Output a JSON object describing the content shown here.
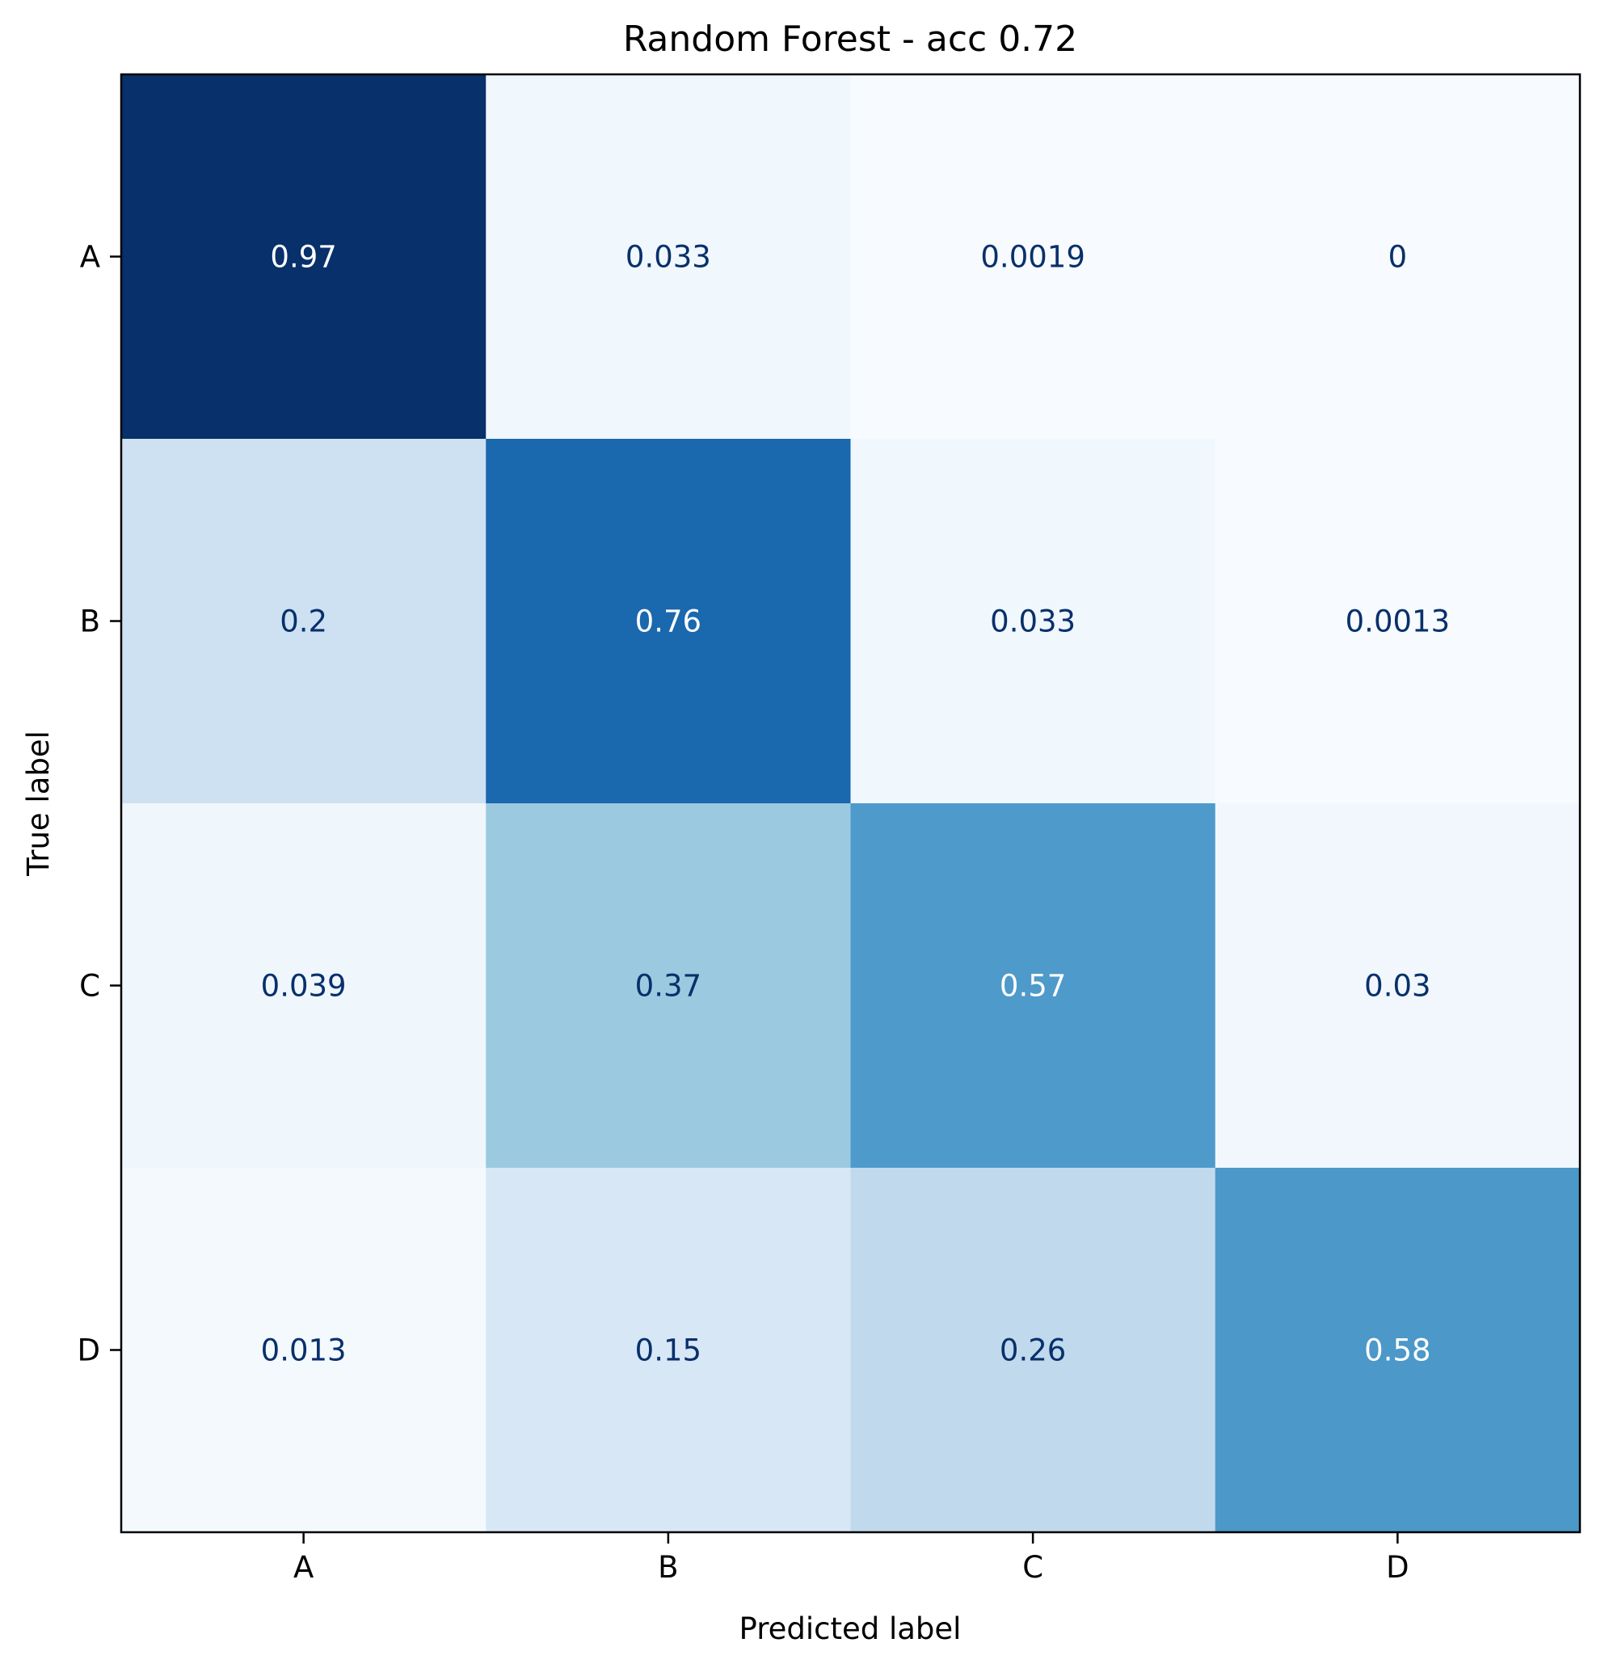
{
  "chart_data": {
    "type": "heatmap",
    "title": "Random Forest - acc 0.72",
    "xlabel": "Predicted label",
    "ylabel": "True label",
    "x_categories": [
      "A",
      "B",
      "C",
      "D"
    ],
    "y_categories": [
      "A",
      "B",
      "C",
      "D"
    ],
    "values": [
      [
        0.97,
        0.033,
        0.0019,
        0
      ],
      [
        0.2,
        0.76,
        0.033,
        0.0013
      ],
      [
        0.039,
        0.37,
        0.57,
        0.03
      ],
      [
        0.013,
        0.15,
        0.26,
        0.58
      ]
    ],
    "value_labels": [
      [
        "0.97",
        "0.033",
        "0.0019",
        "0"
      ],
      [
        "0.2",
        "0.76",
        "0.033",
        "0.0013"
      ],
      [
        "0.039",
        "0.37",
        "0.57",
        "0.03"
      ],
      [
        "0.013",
        "0.15",
        "0.26",
        "0.58"
      ]
    ],
    "colormap": "Blues",
    "value_range": [
      0,
      0.97
    ],
    "colors": {
      "dark_text": "#08306b",
      "light_text": "#ffffff",
      "axis": "#000000"
    },
    "grid": false,
    "colorbar": false
  }
}
